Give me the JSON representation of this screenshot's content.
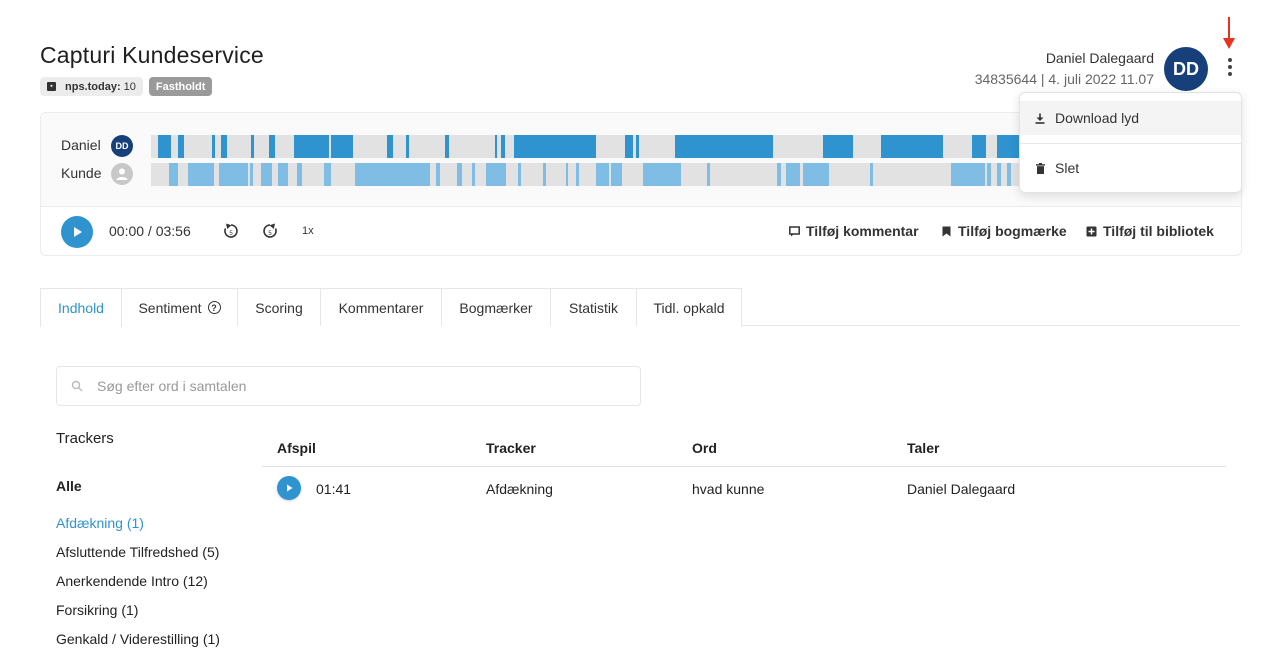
{
  "header": {
    "title": "Capturi Kundeservice",
    "nps_label": "nps.today:",
    "nps_value": "10",
    "status_badge": "Fastholdt",
    "user_name": "Daniel Dalegaard",
    "call_meta": "34835644 | 4. juli 2022 11.07",
    "avatar_initials": "DD"
  },
  "menu": {
    "download_label": "Download lyd",
    "delete_label": "Slet"
  },
  "player": {
    "speaker1_name": "Daniel",
    "speaker1_initials": "DD",
    "speaker2_name": "Kunde",
    "time": "00:00 / 03:56",
    "speed": "1x",
    "add_comment": "Tilføj kommentar",
    "add_bookmark": "Tilføj bogmærke",
    "add_library": "Tilføj til bibliotek"
  },
  "tabs": [
    {
      "label": "Indhold",
      "active": true
    },
    {
      "label": "Sentiment",
      "active": false
    },
    {
      "label": "Scoring",
      "active": false
    },
    {
      "label": "Kommentarer",
      "active": false
    },
    {
      "label": "Bogmærker",
      "active": false
    },
    {
      "label": "Statistik",
      "active": false
    },
    {
      "label": "Tidl. opkald",
      "active": false
    }
  ],
  "search": {
    "placeholder": "Søg efter ord i samtalen"
  },
  "trackers": {
    "title": "Trackers",
    "items": [
      "Alle",
      "Afdækning (1)",
      "Afsluttende Tilfredshed (5)",
      "Anerkendende Intro (12)",
      "Forsikring (1)",
      "Genkald / Viderestilling (1)"
    ]
  },
  "table": {
    "headers": [
      "Afspil",
      "Tracker",
      "Ord",
      "Taler"
    ],
    "rows": [
      {
        "time": "01:41",
        "tracker": "Afdækning",
        "word": "hvad kunne",
        "speaker": "Daniel Dalegaard"
      }
    ]
  },
  "colors": {
    "accent": "#2f93d0",
    "agent_segment": "#2f93d0",
    "customer_segment": "#7fbde5",
    "avatar": "#17407a",
    "arrow": "#e8331e"
  }
}
